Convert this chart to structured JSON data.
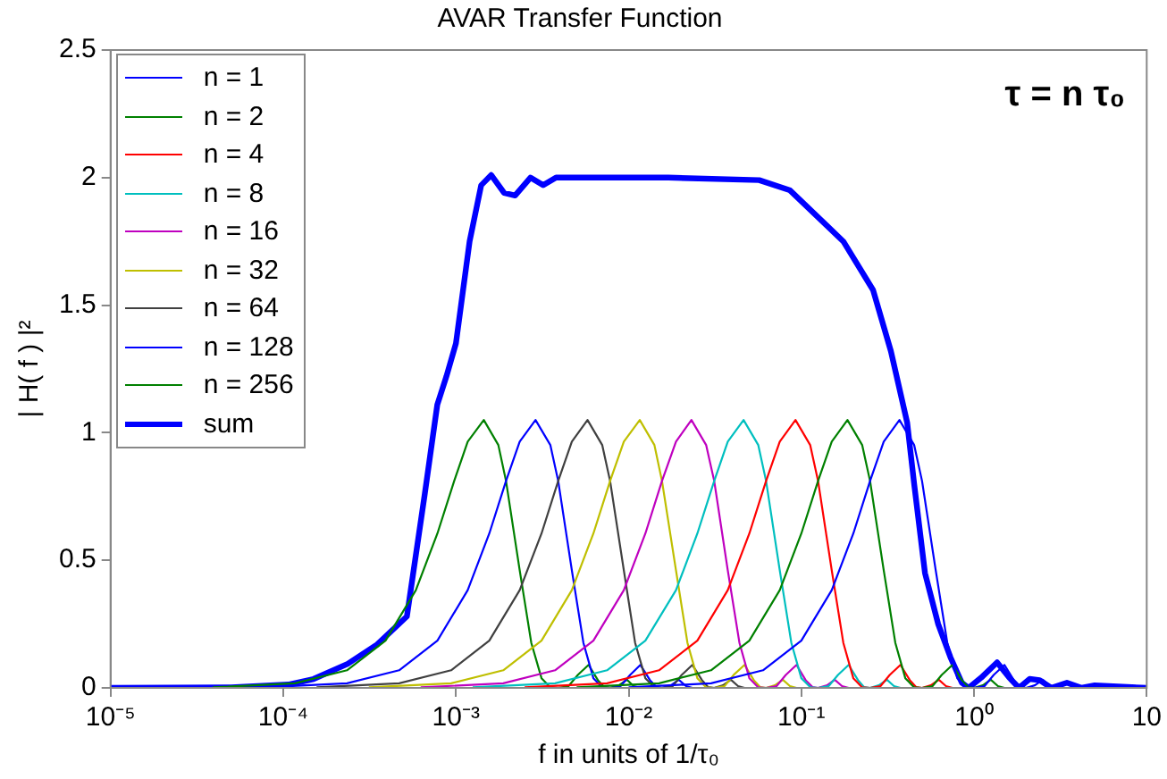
{
  "chart_data": {
    "type": "line",
    "title": "AVAR Transfer Function",
    "xlabel": "f in units of 1/τ₀",
    "ylabel": "| H( f ) |²",
    "annotations": [
      "τ = n τ₀"
    ],
    "log": "x",
    "legend": "top left",
    "xlim": [
      1e-05,
      10
    ],
    "xticks": [
      {
        "value": 1e-05,
        "label": "10⁻⁵"
      },
      {
        "value": 0.0001,
        "label": "10⁻⁴"
      },
      {
        "value": 0.001,
        "label": "10⁻³"
      },
      {
        "value": 0.01,
        "label": "10⁻²"
      },
      {
        "value": 0.1,
        "label": "10⁻¹"
      },
      {
        "value": 1,
        "label": "10⁰"
      },
      10
    ],
    "ylim": [
      0,
      2.5
    ],
    "yticks": [
      0,
      0.5,
      1,
      1.5,
      2,
      2.5
    ],
    "series": [
      {
        "name": "n = 1",
        "color": "#0000ff",
        "x": [
          0.01,
          0.03,
          0.06,
          0.1,
          0.15,
          0.2,
          0.25,
          0.3,
          0.37,
          0.45,
          0.5,
          0.6,
          0.7,
          0.8,
          0.9,
          1,
          1.15,
          1.3,
          1.5,
          1.7,
          1.85,
          2,
          2.25,
          2.5,
          2.75,
          3
        ],
        "values": [
          0.002,
          0.018,
          0.069,
          0.185,
          0.383,
          0.605,
          0.811,
          0.965,
          1.05,
          0.952,
          0.811,
          0.461,
          0.177,
          0.038,
          0.002,
          0,
          0.007,
          0.051,
          0.09,
          0.03,
          0.003,
          0,
          0.01,
          0.032,
          0.007,
          0
        ]
      },
      {
        "name": "n = 2",
        "color": "#008000",
        "x": [
          0.005,
          0.015,
          0.03,
          0.05,
          0.075,
          0.1,
          0.125,
          0.15,
          0.185,
          0.225,
          0.25,
          0.3,
          0.35,
          0.4,
          0.45,
          0.5,
          0.575,
          0.65,
          0.75,
          0.85,
          0.925,
          1,
          1.125,
          1.25,
          1.375,
          1.5
        ],
        "values": [
          0.002,
          0.018,
          0.069,
          0.185,
          0.383,
          0.605,
          0.811,
          0.965,
          1.05,
          0.952,
          0.811,
          0.461,
          0.177,
          0.038,
          0.002,
          0,
          0.007,
          0.051,
          0.09,
          0.03,
          0.003,
          0,
          0.01,
          0.032,
          0.007,
          0
        ]
      },
      {
        "name": "n = 4",
        "color": "#ff0000",
        "x": [
          0.0025,
          0.0075,
          0.015,
          0.025,
          0.0375,
          0.05,
          0.0625,
          0.075,
          0.0925,
          0.1125,
          0.125,
          0.15,
          0.175,
          0.2,
          0.225,
          0.25,
          0.2875,
          0.325,
          0.375,
          0.425,
          0.4625,
          0.5,
          0.5625,
          0.625,
          0.6875,
          0.75
        ],
        "values": [
          0.002,
          0.018,
          0.069,
          0.185,
          0.383,
          0.605,
          0.811,
          0.965,
          1.05,
          0.952,
          0.811,
          0.461,
          0.177,
          0.038,
          0.002,
          0,
          0.007,
          0.051,
          0.09,
          0.03,
          0.003,
          0,
          0.01,
          0.032,
          0.007,
          0
        ]
      },
      {
        "name": "n = 8",
        "color": "#00bfbf",
        "x": [
          0.00125,
          0.00375,
          0.0075,
          0.0125,
          0.0188,
          0.025,
          0.0313,
          0.0375,
          0.0463,
          0.0563,
          0.0625,
          0.075,
          0.0875,
          0.1,
          0.113,
          0.125,
          0.144,
          0.163,
          0.188,
          0.213,
          0.231,
          0.25,
          0.281,
          0.313,
          0.344,
          0.375
        ],
        "values": [
          0.002,
          0.018,
          0.069,
          0.185,
          0.383,
          0.605,
          0.811,
          0.965,
          1.05,
          0.952,
          0.811,
          0.461,
          0.177,
          0.038,
          0.002,
          0,
          0.007,
          0.051,
          0.09,
          0.03,
          0.003,
          0,
          0.01,
          0.032,
          0.007,
          0
        ]
      },
      {
        "name": "n = 16",
        "color": "#bf00bf",
        "x": [
          0.000625,
          0.00188,
          0.00375,
          0.00625,
          0.00938,
          0.0125,
          0.0156,
          0.0188,
          0.0231,
          0.0281,
          0.0313,
          0.0375,
          0.0438,
          0.05,
          0.0563,
          0.0625,
          0.0719,
          0.0813,
          0.0938,
          0.106,
          0.116,
          0.125,
          0.141,
          0.156,
          0.172,
          0.188
        ],
        "values": [
          0.002,
          0.018,
          0.069,
          0.185,
          0.383,
          0.605,
          0.811,
          0.965,
          1.05,
          0.952,
          0.811,
          0.461,
          0.177,
          0.038,
          0.002,
          0,
          0.007,
          0.051,
          0.09,
          0.03,
          0.003,
          0,
          0.01,
          0.032,
          0.007,
          0
        ]
      },
      {
        "name": "n = 32",
        "color": "#bfbf00",
        "x": [
          0.000313,
          0.000938,
          0.00188,
          0.00313,
          0.00469,
          0.00625,
          0.00781,
          0.00938,
          0.0116,
          0.0141,
          0.0156,
          0.0188,
          0.0219,
          0.025,
          0.0281,
          0.0313,
          0.0359,
          0.0406,
          0.0469,
          0.0531,
          0.0578,
          0.0625,
          0.0703,
          0.0781,
          0.0859,
          0.0938
        ],
        "values": [
          0.002,
          0.018,
          0.069,
          0.185,
          0.383,
          0.605,
          0.811,
          0.965,
          1.05,
          0.952,
          0.811,
          0.461,
          0.177,
          0.038,
          0.002,
          0,
          0.007,
          0.051,
          0.09,
          0.03,
          0.003,
          0,
          0.01,
          0.032,
          0.007,
          0
        ]
      },
      {
        "name": "n = 64",
        "color": "#404040",
        "x": [
          0.000156,
          0.000469,
          0.000938,
          0.00156,
          0.00234,
          0.00313,
          0.00391,
          0.00469,
          0.00578,
          0.00703,
          0.00781,
          0.00938,
          0.0109,
          0.0125,
          0.0141,
          0.0156,
          0.018,
          0.0203,
          0.0234,
          0.0266,
          0.0289,
          0.0313,
          0.0352,
          0.0391,
          0.043,
          0.0469
        ],
        "values": [
          0.002,
          0.018,
          0.069,
          0.185,
          0.383,
          0.605,
          0.811,
          0.965,
          1.05,
          0.952,
          0.811,
          0.461,
          0.177,
          0.038,
          0.002,
          0,
          0.007,
          0.051,
          0.09,
          0.03,
          0.003,
          0,
          0.01,
          0.032,
          0.007,
          0
        ]
      },
      {
        "name": "n = 128",
        "color": "#0000ff",
        "x": [
          7.81e-05,
          0.000234,
          0.000469,
          0.000781,
          0.00117,
          0.00156,
          0.00195,
          0.00234,
          0.00289,
          0.00352,
          0.00391,
          0.00469,
          0.00547,
          0.00625,
          0.00703,
          0.00781,
          0.00898,
          0.0102,
          0.0117,
          0.0133,
          0.0145,
          0.0156,
          0.0176,
          0.0195,
          0.0215,
          0.0234
        ],
        "values": [
          0.002,
          0.018,
          0.069,
          0.185,
          0.383,
          0.605,
          0.811,
          0.965,
          1.05,
          0.952,
          0.811,
          0.461,
          0.177,
          0.038,
          0.002,
          0,
          0.007,
          0.051,
          0.09,
          0.03,
          0.003,
          0,
          0.01,
          0.032,
          0.007,
          0
        ]
      },
      {
        "name": "n = 256",
        "color": "#008000",
        "x": [
          3.91e-05,
          0.000117,
          0.000234,
          0.000391,
          0.000586,
          0.000781,
          0.000977,
          0.00117,
          0.00145,
          0.00176,
          0.00195,
          0.00234,
          0.00273,
          0.00313,
          0.00352,
          0.00391,
          0.00449,
          0.00508,
          0.00586,
          0.00664,
          0.00723,
          0.00781,
          0.00879,
          0.00977,
          0.0107,
          0.0117
        ],
        "values": [
          0.002,
          0.018,
          0.069,
          0.185,
          0.383,
          0.605,
          0.811,
          0.965,
          1.05,
          0.952,
          0.811,
          0.461,
          0.177,
          0.038,
          0.002,
          0,
          0.007,
          0.051,
          0.09,
          0.03,
          0.003,
          0,
          0.01,
          0.032,
          0.007,
          0
        ]
      },
      {
        "name": "sum",
        "color": "#0000ff",
        "x": [
          1e-05,
          5e-05,
          0.000107,
          0.00015,
          0.000236,
          0.00035,
          0.00052,
          0.00066,
          0.00078,
          0.00088,
          0.001,
          0.0012,
          0.0014,
          0.0016,
          0.0019,
          0.0022,
          0.0027,
          0.0032,
          0.0038,
          0.006,
          0.017,
          0.057,
          0.086,
          0.175,
          0.26,
          0.33,
          0.41,
          0.45,
          0.52,
          0.62,
          0.73,
          0.85,
          0.93,
          1.1,
          1.36,
          1.6,
          1.82,
          2.1,
          2.4,
          2.8,
          3.45,
          4.2,
          5,
          10
        ],
        "values": [
          0,
          0.002,
          0.013,
          0.035,
          0.094,
          0.17,
          0.28,
          0.76,
          1.11,
          1.22,
          1.35,
          1.75,
          1.97,
          2.01,
          1.94,
          1.93,
          2,
          1.97,
          2,
          2,
          2,
          1.99,
          1.95,
          1.75,
          1.56,
          1.32,
          1.04,
          0.8,
          0.45,
          0.25,
          0.12,
          0.02,
          0,
          0.04,
          0.1,
          0.04,
          0,
          0.035,
          0.03,
          0,
          0.02,
          0,
          0.01,
          0
        ]
      }
    ]
  }
}
